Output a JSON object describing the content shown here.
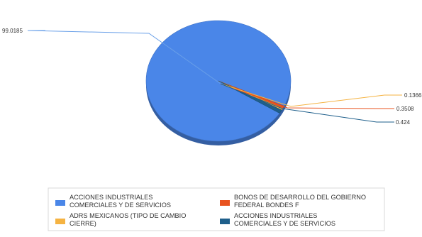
{
  "chart_data": {
    "type": "pie",
    "title": "",
    "series": [
      {
        "label": "ACCIONES INDUSTRIALES COMERCIALES Y DE SERVICIOS",
        "value": 99.0185,
        "value_label": "99.0185",
        "color": "#4a86e8"
      },
      {
        "label": "BONOS DE DESARROLLO DEL GOBIERNO FEDERAL BONDES F",
        "value": 0.3508,
        "value_label": "0.3508",
        "color": "#e8531f"
      },
      {
        "label": "ADRS MEXICANOS (TIPO DE CAMBIO CIERRE)",
        "value": 0.1366,
        "value_label": "0.1366",
        "color": "#f5b342"
      },
      {
        "label": "ACCIONES INDUSTRIALES COMERCIALES Y DE SERVICIOS",
        "value": 0.424,
        "value_label": "0.424",
        "color": "#1f5f8b"
      }
    ],
    "legend_position": "bottom"
  }
}
